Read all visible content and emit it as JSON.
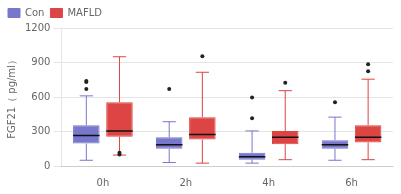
{
  "chart_data": {
    "type": "box",
    "ylabel": "FGF21（ pg/ml）",
    "categories": [
      "0h",
      "2h",
      "4h",
      "6h"
    ],
    "ylim": [
      0,
      1200
    ],
    "yticks": [
      0,
      300,
      600,
      900,
      1200
    ],
    "grid": true,
    "legend": "upper left",
    "series": [
      {
        "name": "Con",
        "color": "#7777cc",
        "values": [
          {
            "whisker_low": 50,
            "q1": 195,
            "median": 265,
            "q3": 355,
            "whisker_high": 610,
            "outliers": [
              730,
              670,
              740
            ]
          },
          {
            "whisker_low": 30,
            "q1": 150,
            "median": 185,
            "q3": 250,
            "whisker_high": 385,
            "outliers": [
              670
            ]
          },
          {
            "whisker_low": 25,
            "q1": 55,
            "median": 80,
            "q3": 115,
            "whisker_high": 305,
            "outliers": [
              415,
              595
            ]
          },
          {
            "whisker_low": 50,
            "q1": 150,
            "median": 185,
            "q3": 225,
            "whisker_high": 425,
            "outliers": [
              555
            ]
          }
        ]
      },
      {
        "name": "MAFLD",
        "color": "#dd4444",
        "values": [
          {
            "whisker_low": 95,
            "q1": 255,
            "median": 305,
            "q3": 555,
            "whisker_high": 950,
            "outliers": [
              100,
              115
            ]
          },
          {
            "whisker_low": 25,
            "q1": 230,
            "median": 275,
            "q3": 425,
            "whisker_high": 815,
            "outliers": [
              955
            ]
          },
          {
            "whisker_low": 55,
            "q1": 190,
            "median": 250,
            "q3": 305,
            "whisker_high": 655,
            "outliers": [
              725
            ]
          },
          {
            "whisker_low": 55,
            "q1": 205,
            "median": 250,
            "q3": 355,
            "whisker_high": 755,
            "outliers": [
              885,
              825
            ]
          }
        ]
      }
    ]
  }
}
